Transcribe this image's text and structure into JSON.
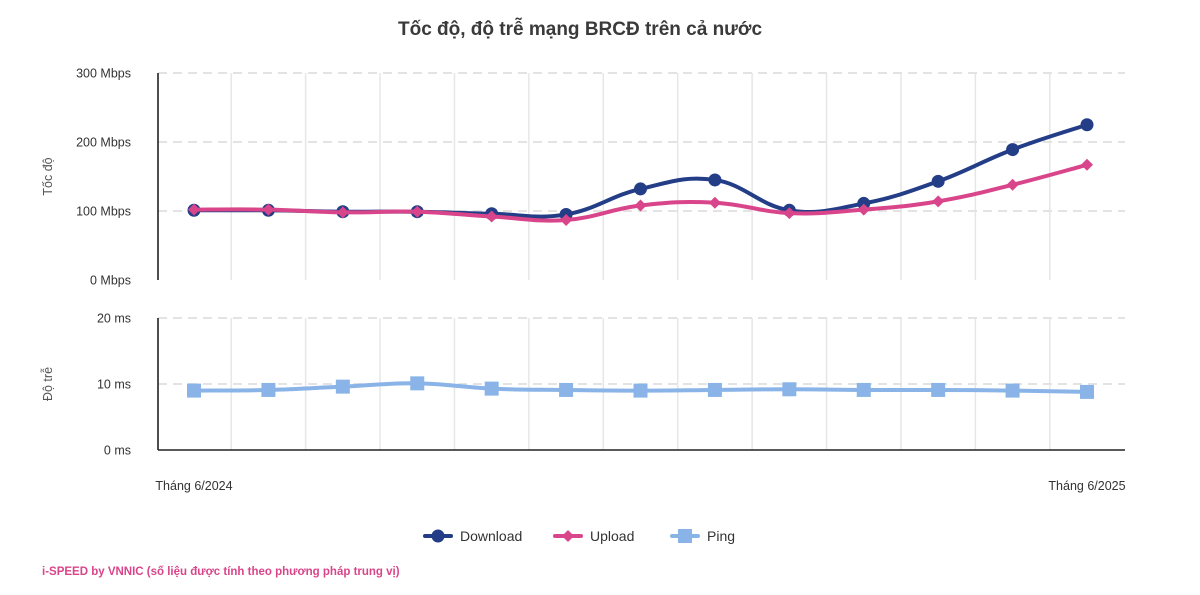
{
  "chart_data": {
    "type": "line",
    "title": "Tốc độ, độ trễ mạng BRCĐ trên cả nước",
    "footer": "i-SPEED by VNNIC (số liệu được tính theo phương pháp trung vị)",
    "x_labels": [
      "Tháng 6/2024",
      "Tháng 6/2025"
    ],
    "n_points": 13,
    "panels": [
      {
        "ylabel": "Tốc độ",
        "ylim": [
          0,
          300
        ],
        "yticks": [
          {
            "value": 0,
            "label": "0 Mbps"
          },
          {
            "value": 100,
            "label": "100 Mbps"
          },
          {
            "value": 200,
            "label": "200 Mbps"
          },
          {
            "value": 300,
            "label": "300 Mbps"
          }
        ],
        "series": [
          {
            "name": "Download",
            "color": "#233d87",
            "marker": "circle",
            "values": [
              101,
              101,
              99,
              99,
              96,
              95,
              132,
              145,
              101,
              111,
              143,
              189,
              225
            ]
          },
          {
            "name": "Upload",
            "color": "#d9458a",
            "marker": "diamond",
            "values": [
              102,
              102,
              98,
              99,
              92,
              87,
              108,
              112,
              97,
              102,
              114,
              138,
              167
            ]
          }
        ]
      },
      {
        "ylabel": "Độ trễ",
        "ylim": [
          0,
          20
        ],
        "yticks": [
          {
            "value": 0,
            "label": "0 ms"
          },
          {
            "value": 10,
            "label": "10 ms"
          },
          {
            "value": 20,
            "label": "20 ms"
          }
        ],
        "series": [
          {
            "name": "Ping",
            "color": "#8ab4e8",
            "marker": "square",
            "values": [
              9.0,
              9.1,
              9.6,
              10.1,
              9.3,
              9.1,
              9.0,
              9.1,
              9.2,
              9.1,
              9.1,
              9.0,
              8.8
            ]
          }
        ]
      }
    ],
    "legend": [
      {
        "name": "Download",
        "color": "#233d87",
        "marker": "circle"
      },
      {
        "name": "Upload",
        "color": "#d9458a",
        "marker": "diamond"
      },
      {
        "name": "Ping",
        "color": "#8ab4e8",
        "marker": "square"
      }
    ]
  }
}
